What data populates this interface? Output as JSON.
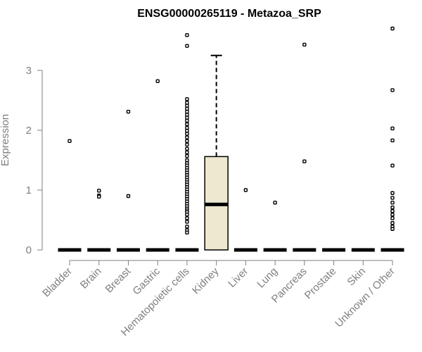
{
  "chart_data": {
    "type": "box",
    "title": "ENSG00000265119 - Metazoa_SRP",
    "xlabel": "",
    "ylabel": "Expression",
    "ylim": [
      0,
      3.7
    ],
    "yticks": [
      0,
      1,
      2,
      3
    ],
    "grid": false,
    "legend": "none",
    "box_fill": "#ede8cf",
    "categories": [
      "Bladder",
      "Brain",
      "Breast",
      "Gastric",
      "Hematopoietic cells",
      "Kidney",
      "Liver",
      "Lung",
      "Pancreas",
      "Prostate",
      "Skin",
      "Unknown / Other"
    ],
    "boxes": [
      {
        "category": "Bladder",
        "whisker_low": 0,
        "q1": 0,
        "median": 0,
        "q3": 0,
        "whisker_high": 0,
        "outliers": [
          1.82
        ]
      },
      {
        "category": "Brain",
        "whisker_low": 0,
        "q1": 0,
        "median": 0,
        "q3": 0,
        "whisker_high": 0,
        "outliers": [
          0.99,
          0.91,
          0.89
        ]
      },
      {
        "category": "Breast",
        "whisker_low": 0,
        "q1": 0,
        "median": 0,
        "q3": 0,
        "whisker_high": 0,
        "outliers": [
          2.31,
          0.9
        ]
      },
      {
        "category": "Gastric",
        "whisker_low": 0,
        "q1": 0,
        "median": 0,
        "q3": 0,
        "whisker_high": 0,
        "outliers": [
          2.82
        ]
      },
      {
        "category": "Hematopoietic cells",
        "whisker_low": 0,
        "q1": 0,
        "median": 0,
        "q3": 0,
        "whisker_high": 0,
        "outliers": [
          3.59,
          3.41,
          2.52,
          2.46,
          2.41,
          2.36,
          2.31,
          2.26,
          2.21,
          2.16,
          2.1,
          2.04,
          1.99,
          1.94,
          1.88,
          1.82,
          1.76,
          1.69,
          1.63,
          1.57,
          1.5,
          1.45,
          1.41,
          1.37,
          1.33,
          1.29,
          1.25,
          1.21,
          1.17,
          1.13,
          1.09,
          1.05,
          1.01,
          0.97,
          0.93,
          0.89,
          0.85,
          0.81,
          0.77,
          0.73,
          0.69,
          0.66,
          0.63,
          0.59,
          0.53,
          0.47,
          0.39,
          0.33,
          0.29
        ]
      },
      {
        "category": "Kidney",
        "whisker_low": 0,
        "q1": 0,
        "median": 0.76,
        "q3": 1.56,
        "whisker_high": 3.25,
        "outliers": []
      },
      {
        "category": "Liver",
        "whisker_low": 0,
        "q1": 0,
        "median": 0,
        "q3": 0,
        "whisker_high": 0,
        "outliers": [
          1.0
        ]
      },
      {
        "category": "Lung",
        "whisker_low": 0,
        "q1": 0,
        "median": 0,
        "q3": 0,
        "whisker_high": 0,
        "outliers": [
          0.79
        ]
      },
      {
        "category": "Pancreas",
        "whisker_low": 0,
        "q1": 0,
        "median": 0,
        "q3": 0,
        "whisker_high": 0,
        "outliers": [
          3.43,
          1.48
        ]
      },
      {
        "category": "Prostate",
        "whisker_low": 0,
        "q1": 0,
        "median": 0,
        "q3": 0,
        "whisker_high": 0,
        "outliers": []
      },
      {
        "category": "Skin",
        "whisker_low": 0,
        "q1": 0,
        "median": 0,
        "q3": 0,
        "whisker_high": 0,
        "outliers": []
      },
      {
        "category": "Unknown / Other",
        "whisker_low": 0,
        "q1": 0,
        "median": 0,
        "q3": 0,
        "whisker_high": 0,
        "outliers": [
          3.7,
          2.67,
          2.03,
          1.83,
          1.41,
          0.95,
          0.87,
          0.79,
          0.71,
          0.65,
          0.59,
          0.53,
          0.45,
          0.39,
          0.35
        ]
      }
    ]
  }
}
